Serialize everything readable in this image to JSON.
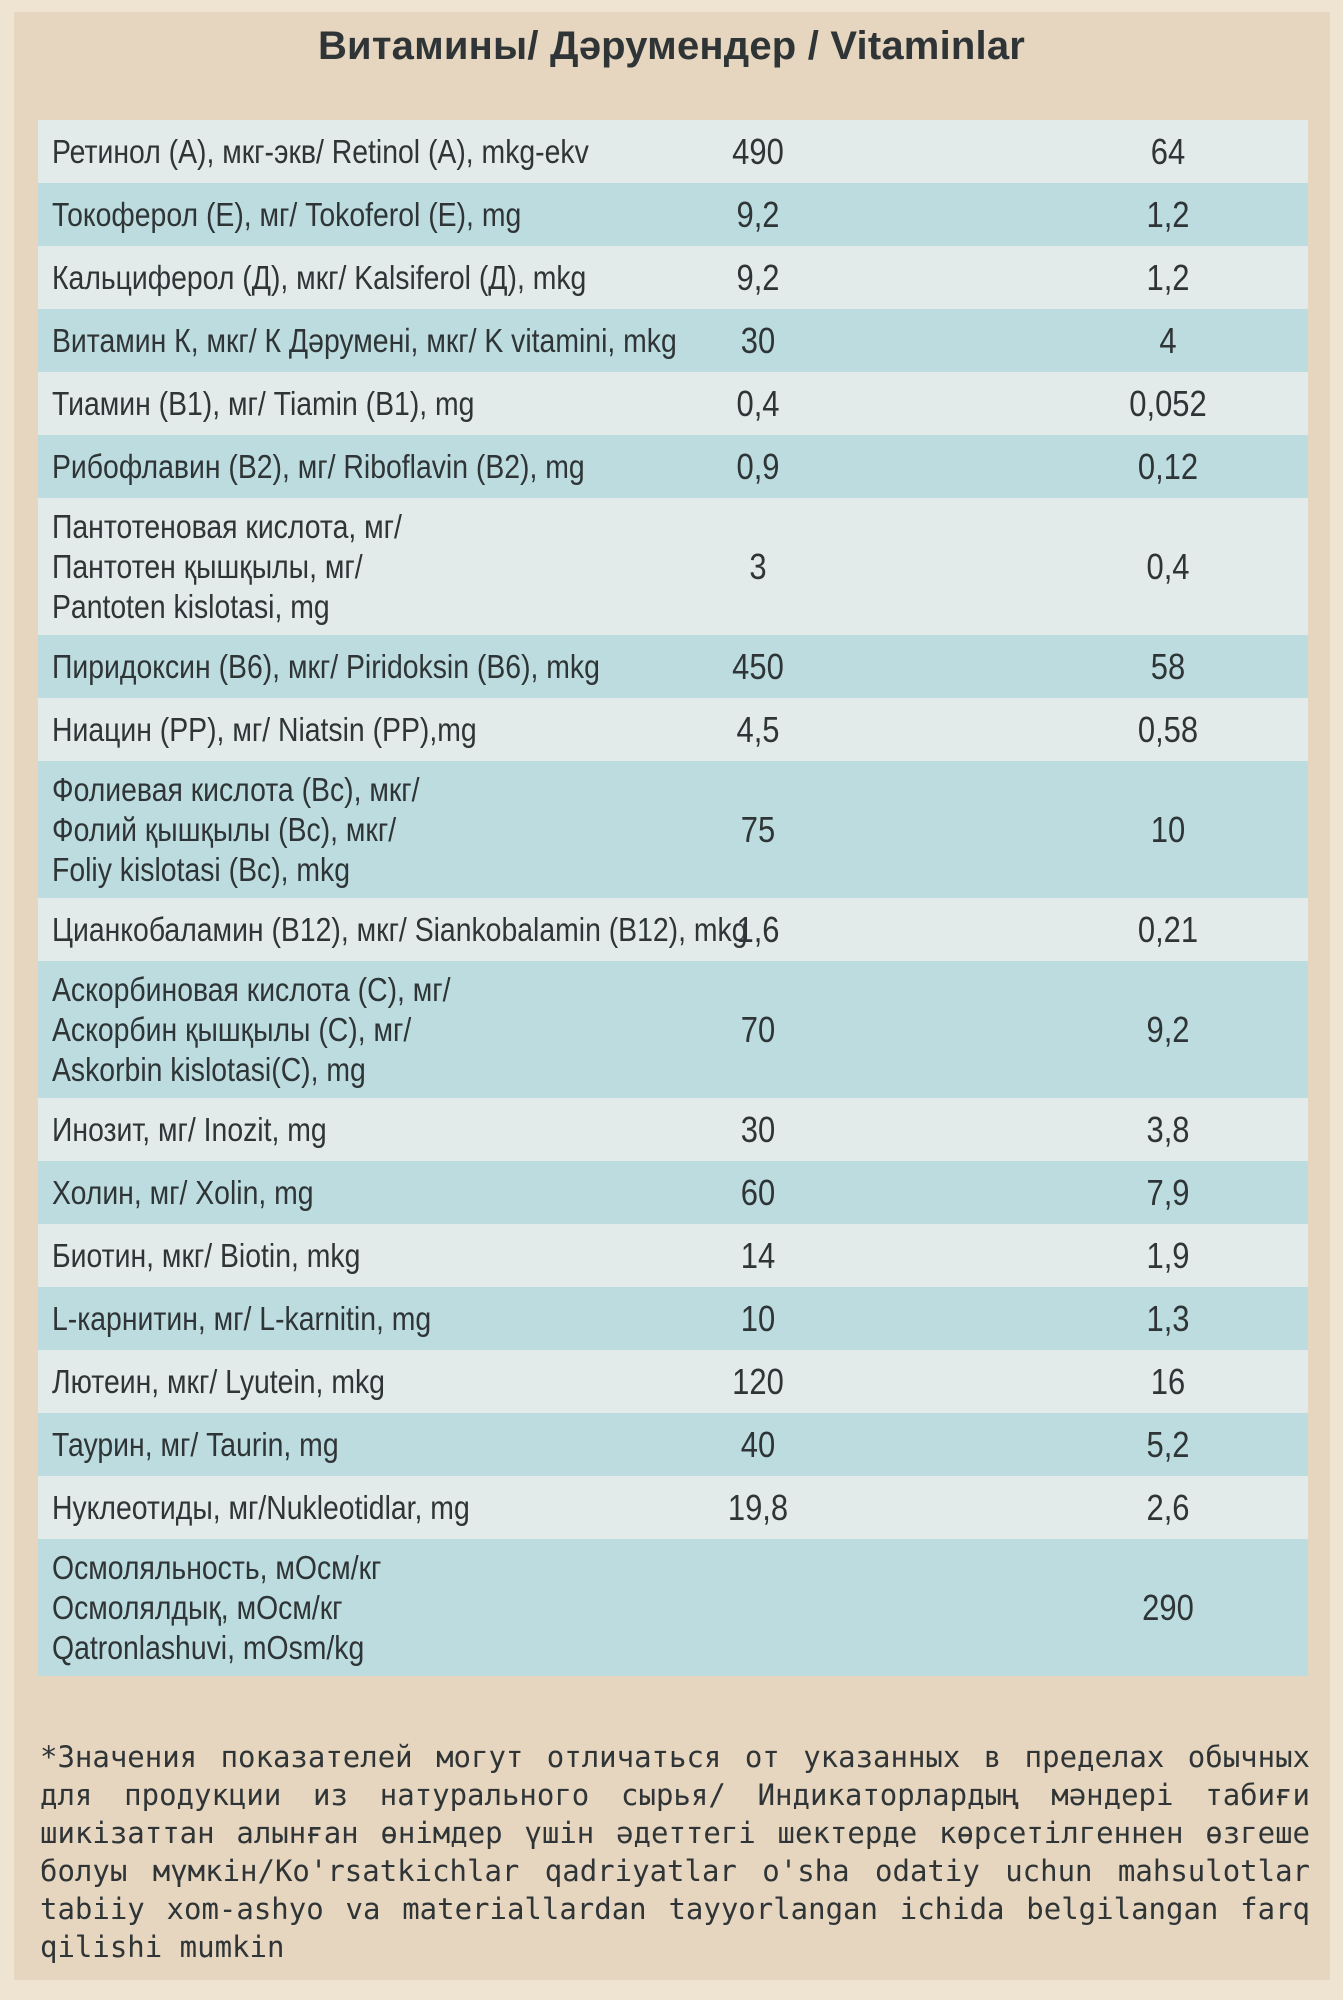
{
  "title": "Витамины/ Дәрумендер / Vitaminlar",
  "rows": [
    {
      "name": [
        "Ретинол (А), мкг-экв/ Retinol (A), mkg-ekv"
      ],
      "v1": "490",
      "v2": "64"
    },
    {
      "name": [
        "Токоферол (Е), мг/ Tokoferol (E), mg"
      ],
      "v1": "9,2",
      "v2": "1,2"
    },
    {
      "name": [
        "Кальциферол (Д), мкг/ Kalsiferol (Д), mkg"
      ],
      "v1": "9,2",
      "v2": "1,2"
    },
    {
      "name": [
        "Витамин К, мкг/ К Дәрумені, мкг/ K vitamini, mkg"
      ],
      "v1": "30",
      "v2": "4"
    },
    {
      "name": [
        "Тиамин (В1), мг/ Tiamin (B1), mg"
      ],
      "v1": "0,4",
      "v2": "0,052"
    },
    {
      "name": [
        "Рибофлавин (В2), мг/ Riboflavin (B2), mg"
      ],
      "v1": "0,9",
      "v2": "0,12"
    },
    {
      "name": [
        "Пантотеновая кислота, мг/",
        "Пантотен қышқылы, мг/",
        "Pantoten kislotasi, mg"
      ],
      "v1": "3",
      "v2": "0,4"
    },
    {
      "name": [
        "Пиридоксин (В6), мкг/ Piridoksin (B6), mkg"
      ],
      "v1": "450",
      "v2": "58"
    },
    {
      "name": [
        "Ниацин (РР), мг/ Niatsin (PP),mg"
      ],
      "v1": "4,5",
      "v2": "0,58"
    },
    {
      "name": [
        "Фолиевая кислота (Вс), мкг/",
        "Фолий қышқылы (Вс), мкг/",
        "Foliy kislotasi (Bc), mkg"
      ],
      "v1": "75",
      "v2": "10"
    },
    {
      "name": [
        "Цианкобаламин (В12), мкг/ Siankobalamin (B12), mkg"
      ],
      "v1": "1,6",
      "v2": "0,21"
    },
    {
      "name": [
        "Аскорбиновая кислота (С), мг/",
        "Аскорбин қышқылы (С), мг/",
        "Askorbin kislotasi(C), mg"
      ],
      "v1": "70",
      "v2": "9,2"
    },
    {
      "name": [
        "Инозит, мг/ Inozit, mg"
      ],
      "v1": "30",
      "v2": "3,8"
    },
    {
      "name": [
        "Холин, мг/ Xolin, mg"
      ],
      "v1": "60",
      "v2": "7,9"
    },
    {
      "name": [
        "Биотин, мкг/ Biotin, mkg"
      ],
      "v1": "14",
      "v2": "1,9"
    },
    {
      "name": [
        "L-карнитин, мг/ L-karnitin, mg"
      ],
      "v1": "10",
      "v2": "1,3"
    },
    {
      "name": [
        "Лютеин, мкг/ Lyutein, mkg"
      ],
      "v1": "120",
      "v2": "16"
    },
    {
      "name": [
        "Таурин, мг/ Taurin, mg"
      ],
      "v1": "40",
      "v2": "5,2"
    },
    {
      "name": [
        "Нуклеотиды, мг/Nukleotidlar, mg"
      ],
      "v1": "19,8",
      "v2": "2,6"
    },
    {
      "name": [
        "Осмоляльность, мОсм/кг",
        "Осмолялдық, мОсм/кг",
        "Qatronlashuvi, mOsm/kg"
      ],
      "v1": "",
      "v2": "290"
    }
  ],
  "footnote": "*Значения показателей могут отличаться от указанных в пределах обычных для продукции из натурального сырья/ Индикаторлардың мәндері табиғи шикізаттан алынған өнімдер үшін әдеттегі шектерде көрсетілгеннен өзгеше болуы мүмкін/Ko'rsatkichlar qadriyatlar o'sha odatiy uchun mahsulotlar tabiiy xom-ashyo va materiallardan tayyorlangan ichida belgilangan farq qilishi mumkin"
}
